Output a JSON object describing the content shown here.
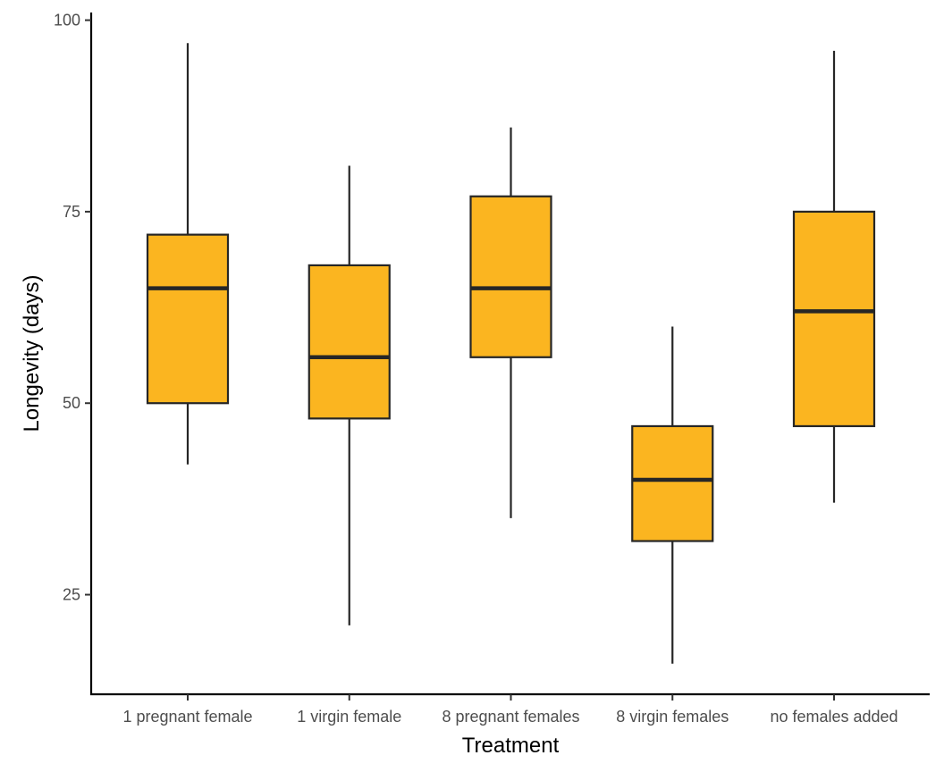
{
  "chart_data": {
    "type": "box",
    "title": "",
    "xlabel": "Treatment",
    "ylabel": "Longevity (days)",
    "ylim": [
      12,
      101
    ],
    "y_ticks": [
      25,
      50,
      75,
      100
    ],
    "y_tick_labels": [
      "25",
      "50",
      "75",
      "100"
    ],
    "grid": false,
    "box_fill": "#FBB520",
    "line_color": "#262626",
    "categories": [
      "1 pregnant female",
      "1 virgin female",
      "8 pregnant females",
      "8 virgin females",
      "no females added"
    ],
    "boxes": [
      {
        "whisker_low": 42,
        "q1": 50,
        "median": 65,
        "q3": 72,
        "whisker_high": 97
      },
      {
        "whisker_low": 21,
        "q1": 48,
        "median": 56,
        "q3": 68,
        "whisker_high": 81
      },
      {
        "whisker_low": 35,
        "q1": 56,
        "median": 65,
        "q3": 77,
        "whisker_high": 86
      },
      {
        "whisker_low": 16,
        "q1": 32,
        "median": 40,
        "q3": 47,
        "whisker_high": 60
      },
      {
        "whisker_low": 37,
        "q1": 47,
        "median": 62,
        "q3": 75,
        "whisker_high": 96
      }
    ]
  }
}
